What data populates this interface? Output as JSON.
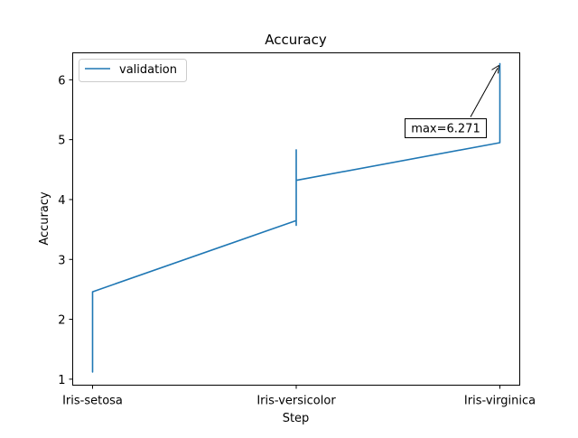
{
  "chart_data": {
    "type": "line",
    "title": "Accuracy",
    "xlabel": "Step",
    "ylabel": "Accuracy",
    "categories": [
      "Iris-setosa",
      "Iris-versicolor",
      "Iris-virginica"
    ],
    "x_ticks": [
      "Iris-setosa",
      "Iris-versicolor",
      "Iris-virginica"
    ],
    "y_ticks": [
      "1",
      "2",
      "3",
      "4",
      "5",
      "6"
    ],
    "ylim": [
      0.9,
      6.45
    ],
    "grid": false,
    "legend_position": "top-left",
    "series": [
      {
        "name": "validation",
        "color": "#1f77b4",
        "points": [
          {
            "x": "Iris-setosa",
            "y": 1.44
          },
          {
            "x": "Iris-setosa",
            "y": 1.12
          },
          {
            "x": "Iris-setosa",
            "y": 1.35
          },
          {
            "x": "Iris-setosa",
            "y": 1.2
          },
          {
            "x": "Iris-setosa",
            "y": 2.46
          },
          {
            "x": "Iris-versicolor",
            "y": 3.65
          },
          {
            "x": "Iris-versicolor",
            "y": 3.57
          },
          {
            "x": "Iris-versicolor",
            "y": 4.83
          },
          {
            "x": "Iris-versicolor",
            "y": 4.1
          },
          {
            "x": "Iris-versicolor",
            "y": 4.32
          },
          {
            "x": "Iris-virginica",
            "y": 4.95
          },
          {
            "x": "Iris-virginica",
            "y": 5.2
          },
          {
            "x": "Iris-virginica",
            "y": 6.271
          },
          {
            "x": "Iris-virginica",
            "y": 5.3
          },
          {
            "x": "Iris-virginica",
            "y": 6.2
          }
        ]
      }
    ],
    "annotation": {
      "text": "max=6.271",
      "x": "Iris-virginica",
      "y": 6.271
    }
  }
}
